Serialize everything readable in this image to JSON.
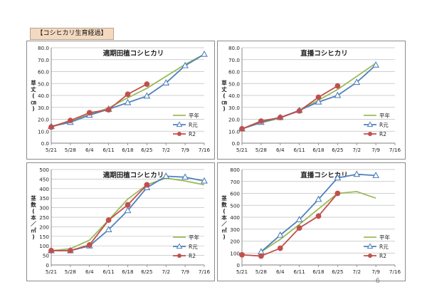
{
  "header": {
    "tag": "【コシヒカリ生育経過】"
  },
  "page_number": "6",
  "legend_labels": [
    "平年",
    "R元",
    "R2"
  ],
  "chart_data": [
    {
      "id": "c1",
      "type": "line",
      "title": "適期田植コシヒカリ",
      "ylabel": [
        "草",
        "丈",
        "(",
        "㎝",
        ")"
      ],
      "categories": [
        "5/21",
        "5/28",
        "6/4",
        "6/11",
        "6/18",
        "6/25",
        "7/2",
        "7/9",
        "7/16"
      ],
      "ylim": [
        0,
        80
      ],
      "yticks": [
        "0.0",
        "10.0",
        "20.0",
        "30.0",
        "40.0",
        "50.0",
        "60.0",
        "70.0",
        "80.0"
      ],
      "series": [
        {
          "name": "平年",
          "color": "#9bbb59",
          "marker": "none",
          "values": [
            14,
            18.5,
            24,
            29.5,
            38,
            46,
            56,
            66,
            74.5
          ]
        },
        {
          "name": "R元",
          "color": "#4f81bd",
          "marker": "triangle",
          "values": [
            14,
            17.5,
            23.5,
            28.5,
            34,
            39.5,
            50.5,
            65,
            74.5
          ]
        },
        {
          "name": "R2",
          "color": "#c0504d",
          "marker": "circle",
          "values": [
            13.5,
            19,
            25.5,
            28,
            41,
            49.5,
            null,
            null,
            null
          ]
        }
      ]
    },
    {
      "id": "c2",
      "type": "line",
      "title": "直播コシヒカリ",
      "ylabel": [
        "草",
        "丈",
        "(",
        "㎝",
        ")"
      ],
      "categories": [
        "5/21",
        "5/28",
        "6/4",
        "6/11",
        "6/18",
        "6/25",
        "7/2",
        "7/9",
        "7/16"
      ],
      "ylim": [
        0,
        80
      ],
      "yticks": [
        "0.0",
        "10.0",
        "20.0",
        "30.0",
        "40.0",
        "50.0",
        "60.0",
        "70.0",
        "80.0"
      ],
      "series": [
        {
          "name": "平年",
          "color": "#9bbb59",
          "marker": "none",
          "values": [
            12,
            17,
            21,
            27.5,
            36,
            45,
            56,
            67,
            null
          ]
        },
        {
          "name": "R元",
          "color": "#4f81bd",
          "marker": "triangle",
          "values": [
            12,
            17.5,
            21.5,
            27.5,
            34.5,
            40,
            51,
            65.5,
            null
          ]
        },
        {
          "name": "R2",
          "color": "#c0504d",
          "marker": "circle",
          "values": [
            12,
            18.5,
            21.5,
            27,
            38.5,
            48,
            null,
            null,
            null
          ]
        }
      ]
    },
    {
      "id": "c3",
      "type": "line",
      "title": "適期田植コシヒカリ",
      "ylabel": [
        "茎",
        "数",
        "(",
        "本",
        "／",
        "㎡",
        ")"
      ],
      "categories": [
        "5/21",
        "5/28",
        "6/4",
        "6/11",
        "6/18",
        "6/25",
        "7/2",
        "7/9",
        "7/16"
      ],
      "ylim": [
        0,
        500
      ],
      "yticks": [
        "0",
        "50",
        "100",
        "150",
        "200",
        "250",
        "300",
        "350",
        "400",
        "450",
        "500"
      ],
      "series": [
        {
          "name": "平年",
          "color": "#9bbb59",
          "marker": "none",
          "values": [
            75,
            85,
            130,
            235,
            345,
            420,
            455,
            440,
            420
          ]
        },
        {
          "name": "R元",
          "color": "#4f81bd",
          "marker": "triangle",
          "values": [
            75,
            75,
            100,
            185,
            285,
            405,
            465,
            460,
            440
          ]
        },
        {
          "name": "R2",
          "color": "#c0504d",
          "marker": "circle",
          "values": [
            75,
            75,
            105,
            235,
            315,
            420,
            null,
            null,
            null
          ]
        }
      ]
    },
    {
      "id": "c4",
      "type": "line",
      "title": "直播コシヒカリ",
      "ylabel": [
        "茎",
        "数",
        "(",
        "本",
        "／",
        "㎡",
        ")"
      ],
      "categories": [
        "5/21",
        "5/28",
        "6/4",
        "6/11",
        "6/18",
        "6/25",
        "7/2",
        "7/9",
        "7/16"
      ],
      "ylim": [
        0,
        800
      ],
      "yticks": [
        "0",
        "100",
        "200",
        "300",
        "400",
        "500",
        "600",
        "700",
        "800"
      ],
      "series": [
        {
          "name": "平年",
          "color": "#9bbb59",
          "marker": "none",
          "values": [
            null,
            110,
            215,
            340,
            470,
            600,
            615,
            560,
            null
          ]
        },
        {
          "name": "R元",
          "color": "#4f81bd",
          "marker": "triangle",
          "values": [
            null,
            110,
            250,
            380,
            550,
            730,
            760,
            750,
            null
          ]
        },
        {
          "name": "R2",
          "color": "#c0504d",
          "marker": "circle",
          "values": [
            85,
            75,
            140,
            310,
            410,
            600,
            null,
            null,
            null
          ]
        }
      ]
    }
  ]
}
